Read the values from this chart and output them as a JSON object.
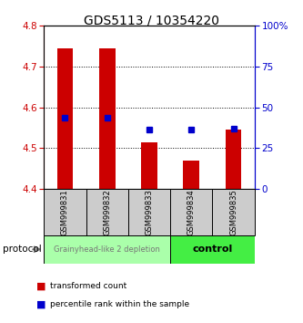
{
  "title": "GDS5113 / 10354220",
  "samples": [
    "GSM999831",
    "GSM999832",
    "GSM999833",
    "GSM999834",
    "GSM999835"
  ],
  "bar_bottoms": [
    4.4,
    4.4,
    4.4,
    4.4,
    4.4
  ],
  "bar_tops": [
    4.745,
    4.745,
    4.515,
    4.47,
    4.545
  ],
  "percentile_values": [
    4.575,
    4.575,
    4.545,
    4.545,
    4.548
  ],
  "ylim_left": [
    4.4,
    4.8
  ],
  "ylim_right": [
    0,
    100
  ],
  "yticks_left": [
    4.4,
    4.5,
    4.6,
    4.7,
    4.8
  ],
  "yticks_right": [
    0,
    25,
    50,
    75,
    100
  ],
  "ytick_labels_right": [
    "0",
    "25",
    "50",
    "75",
    "100%"
  ],
  "bar_color": "#cc0000",
  "percentile_color": "#0000cc",
  "groups": [
    {
      "label": "Grainyhead-like 2 depletion",
      "n_samples": 3,
      "color": "#aaffaa",
      "text_color": "#777777"
    },
    {
      "label": "control",
      "n_samples": 2,
      "color": "#44ee44",
      "text_color": "#000000"
    }
  ],
  "protocol_label": "protocol",
  "legend_red_label": "transformed count",
  "legend_blue_label": "percentile rank within the sample",
  "tick_color_left": "#cc0000",
  "tick_color_right": "#0000cc",
  "sample_label_bg": "#cccccc",
  "grid_yticks": [
    4.5,
    4.6,
    4.7
  ]
}
